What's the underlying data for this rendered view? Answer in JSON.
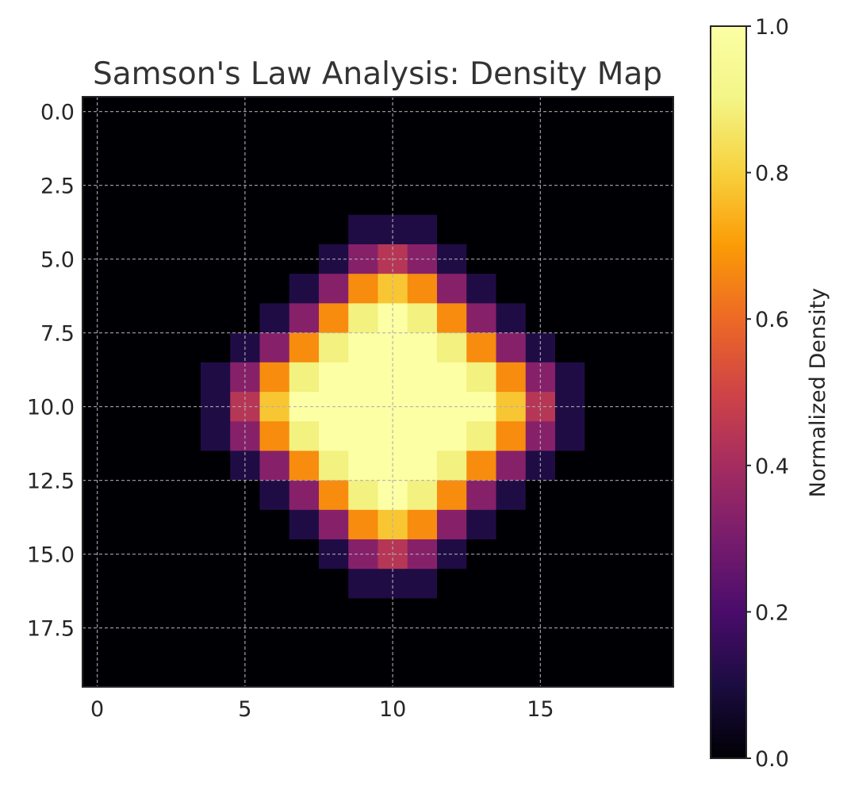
{
  "chart_data": {
    "type": "heatmap",
    "title": "Samson's Law Analysis: Density Map",
    "colormap": "inferno",
    "grid": true,
    "x_range": [
      -0.5,
      19.5
    ],
    "y_range": [
      19.5,
      -0.5
    ],
    "x_ticks": [
      0,
      5,
      10,
      15
    ],
    "x_tick_labels": [
      "0",
      "5",
      "10",
      "15"
    ],
    "y_ticks": [
      0,
      2.5,
      5,
      7.5,
      10,
      12.5,
      15,
      17.5
    ],
    "y_tick_labels": [
      "0.0",
      "2.5",
      "5.0",
      "7.5",
      "10.0",
      "12.5",
      "15.0",
      "17.5"
    ],
    "colorbar": {
      "label": "Normalized Density",
      "range": [
        0,
        1
      ],
      "ticks": [
        0.0,
        0.2,
        0.4,
        0.6,
        0.8,
        1.0
      ],
      "tick_labels": [
        "0.0",
        "0.2",
        "0.4",
        "0.6",
        "0.8",
        "1.0"
      ]
    },
    "values": [
      [
        0,
        0,
        0,
        0,
        0,
        0,
        0,
        0,
        0,
        0,
        0,
        0,
        0,
        0,
        0,
        0,
        0,
        0,
        0,
        0
      ],
      [
        0,
        0,
        0,
        0,
        0,
        0,
        0,
        0,
        0,
        0,
        0,
        0,
        0,
        0,
        0,
        0,
        0,
        0,
        0,
        0
      ],
      [
        0,
        0,
        0,
        0,
        0,
        0,
        0,
        0,
        0,
        0,
        0,
        0,
        0,
        0,
        0,
        0,
        0,
        0,
        0,
        0
      ],
      [
        0,
        0,
        0,
        0,
        0,
        0,
        0,
        0,
        0,
        0,
        0,
        0,
        0,
        0,
        0,
        0,
        0,
        0,
        0,
        0
      ],
      [
        0,
        0,
        0,
        0,
        0,
        0,
        0,
        0,
        0,
        0.11,
        0.11,
        0.11,
        0,
        0,
        0,
        0,
        0,
        0,
        0,
        0
      ],
      [
        0,
        0,
        0,
        0,
        0,
        0,
        0,
        0,
        0.11,
        0.33,
        0.44,
        0.33,
        0.11,
        0,
        0,
        0,
        0,
        0,
        0,
        0
      ],
      [
        0,
        0,
        0,
        0,
        0,
        0,
        0,
        0.11,
        0.33,
        0.67,
        0.78,
        0.67,
        0.33,
        0.11,
        0,
        0,
        0,
        0,
        0,
        0
      ],
      [
        0,
        0,
        0,
        0,
        0,
        0,
        0.11,
        0.33,
        0.67,
        0.89,
        1,
        0.89,
        0.67,
        0.33,
        0.11,
        0,
        0,
        0,
        0,
        0
      ],
      [
        0,
        0,
        0,
        0,
        0,
        0.11,
        0.33,
        0.67,
        0.89,
        1,
        1,
        1,
        0.89,
        0.67,
        0.33,
        0.11,
        0,
        0,
        0,
        0
      ],
      [
        0,
        0,
        0,
        0,
        0.11,
        0.33,
        0.67,
        0.89,
        1,
        1,
        1,
        1,
        1,
        0.89,
        0.67,
        0.33,
        0.11,
        0,
        0,
        0
      ],
      [
        0,
        0,
        0,
        0,
        0.11,
        0.44,
        0.78,
        1,
        1,
        1,
        1,
        1,
        1,
        1,
        0.78,
        0.44,
        0.11,
        0,
        0,
        0
      ],
      [
        0,
        0,
        0,
        0,
        0.11,
        0.33,
        0.67,
        0.89,
        1,
        1,
        1,
        1,
        1,
        0.89,
        0.67,
        0.33,
        0.11,
        0,
        0,
        0
      ],
      [
        0,
        0,
        0,
        0,
        0,
        0.11,
        0.33,
        0.67,
        0.89,
        1,
        1,
        1,
        0.89,
        0.67,
        0.33,
        0.11,
        0,
        0,
        0,
        0
      ],
      [
        0,
        0,
        0,
        0,
        0,
        0,
        0.11,
        0.33,
        0.67,
        0.89,
        1,
        0.89,
        0.67,
        0.33,
        0.11,
        0,
        0,
        0,
        0,
        0
      ],
      [
        0,
        0,
        0,
        0,
        0,
        0,
        0,
        0.11,
        0.33,
        0.67,
        0.78,
        0.67,
        0.33,
        0.11,
        0,
        0,
        0,
        0,
        0,
        0
      ],
      [
        0,
        0,
        0,
        0,
        0,
        0,
        0,
        0,
        0.11,
        0.33,
        0.44,
        0.33,
        0.11,
        0,
        0,
        0,
        0,
        0,
        0,
        0
      ],
      [
        0,
        0,
        0,
        0,
        0,
        0,
        0,
        0,
        0,
        0.11,
        0.11,
        0.11,
        0,
        0,
        0,
        0,
        0,
        0,
        0,
        0
      ],
      [
        0,
        0,
        0,
        0,
        0,
        0,
        0,
        0,
        0,
        0,
        0,
        0,
        0,
        0,
        0,
        0,
        0,
        0,
        0,
        0
      ],
      [
        0,
        0,
        0,
        0,
        0,
        0,
        0,
        0,
        0,
        0,
        0,
        0,
        0,
        0,
        0,
        0,
        0,
        0,
        0,
        0
      ],
      [
        0,
        0,
        0,
        0,
        0,
        0,
        0,
        0,
        0,
        0,
        0,
        0,
        0,
        0,
        0,
        0,
        0,
        0,
        0,
        0
      ]
    ]
  }
}
